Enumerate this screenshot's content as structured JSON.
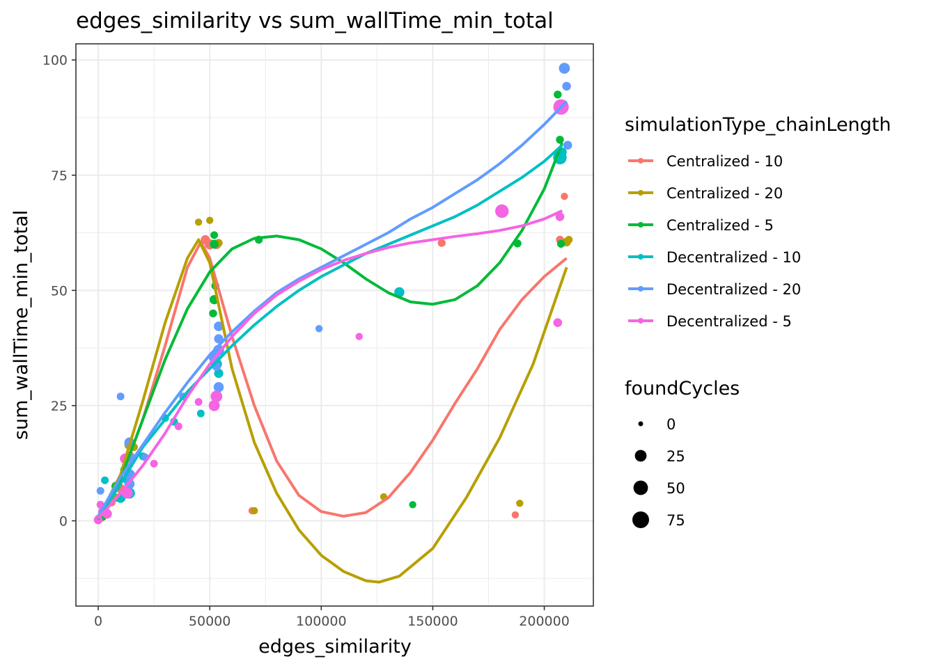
{
  "chart_data": {
    "type": "scatter",
    "title": "edges_similarity  vs  sum_wallTime_min_total",
    "xlabel": "edges_similarity",
    "ylabel": "sum_wallTime_min_total",
    "xlim": [
      -10000,
      222000
    ],
    "ylim": [
      -18.5,
      103.5
    ],
    "x_ticks": [
      0,
      50000,
      100000,
      150000,
      200000
    ],
    "x_tick_labels": [
      "0",
      "50000",
      "100000",
      "150000",
      "200000"
    ],
    "y_ticks": [
      0,
      25,
      50,
      75,
      100
    ],
    "y_tick_labels": [
      "0",
      "25",
      "50",
      "75",
      "100"
    ],
    "grid": true,
    "legend_placement": "right",
    "color_legend": {
      "title": "simulationType_chainLength",
      "items": [
        {
          "name": "Centralized - 10",
          "color": "#F8766D"
        },
        {
          "name": "Centralized - 20",
          "color": "#B79F00"
        },
        {
          "name": "Centralized - 5",
          "color": "#00BA38"
        },
        {
          "name": "Decentralized - 10",
          "color": "#00BFC4"
        },
        {
          "name": "Decentralized - 20",
          "color": "#619CFF"
        },
        {
          "name": "Decentralized - 5",
          "color": "#F564E3"
        }
      ]
    },
    "size_legend": {
      "title": "foundCycles",
      "items": [
        {
          "label": "0",
          "value": 0
        },
        {
          "label": "25",
          "value": 25
        },
        {
          "label": "50",
          "value": 50
        },
        {
          "label": "75",
          "value": 75
        }
      ]
    },
    "series": [
      {
        "name": "Centralized - 10",
        "color": "#F8766D",
        "points": [
          [
            0,
            0.3,
            3
          ],
          [
            1500,
            0.8,
            8
          ],
          [
            3000,
            2,
            12
          ],
          [
            6000,
            4,
            5
          ],
          [
            10000,
            7,
            10
          ],
          [
            14000,
            14,
            15
          ],
          [
            48000,
            61,
            10
          ],
          [
            50000,
            60,
            15
          ],
          [
            53000,
            60,
            12
          ],
          [
            69000,
            2.2,
            3
          ],
          [
            154000,
            60.3,
            5
          ],
          [
            187000,
            1.3,
            3
          ],
          [
            207000,
            61,
            5
          ],
          [
            209000,
            70.4,
            3
          ]
        ],
        "trend": [
          [
            0,
            0.3
          ],
          [
            10000,
            9
          ],
          [
            20000,
            22
          ],
          [
            30000,
            38
          ],
          [
            40000,
            55
          ],
          [
            46000,
            60.5
          ],
          [
            50000,
            57
          ],
          [
            60000,
            40
          ],
          [
            70000,
            25
          ],
          [
            80000,
            13
          ],
          [
            90000,
            5.5
          ],
          [
            100000,
            2
          ],
          [
            110000,
            1
          ],
          [
            120000,
            1.8
          ],
          [
            130000,
            5
          ],
          [
            140000,
            10.5
          ],
          [
            150000,
            17.5
          ],
          [
            160000,
            25.5
          ],
          [
            170000,
            33
          ],
          [
            180000,
            41.5
          ],
          [
            190000,
            48
          ],
          [
            200000,
            53
          ],
          [
            210000,
            57
          ]
        ]
      },
      {
        "name": "Centralized - 20",
        "color": "#B79F00",
        "points": [
          [
            0,
            0.5,
            3
          ],
          [
            3000,
            2,
            8
          ],
          [
            8000,
            5,
            6
          ],
          [
            14000,
            16.5,
            15
          ],
          [
            16000,
            16,
            5
          ],
          [
            45000,
            64.8,
            3
          ],
          [
            50000,
            65.2,
            3
          ],
          [
            54000,
            60.3,
            5
          ],
          [
            70000,
            2.2,
            3
          ],
          [
            128000,
            5.2,
            3
          ],
          [
            189000,
            3.8,
            3
          ],
          [
            210000,
            60.5,
            8
          ],
          [
            211000,
            61,
            4
          ]
        ],
        "trend": [
          [
            0,
            0.5
          ],
          [
            10000,
            10
          ],
          [
            20000,
            26
          ],
          [
            30000,
            43
          ],
          [
            40000,
            57
          ],
          [
            45000,
            61
          ],
          [
            50000,
            56
          ],
          [
            60000,
            33
          ],
          [
            70000,
            17
          ],
          [
            80000,
            6
          ],
          [
            90000,
            -2
          ],
          [
            100000,
            -7.5
          ],
          [
            110000,
            -11
          ],
          [
            120000,
            -13
          ],
          [
            126000,
            -13.3
          ],
          [
            135000,
            -12
          ],
          [
            150000,
            -6
          ],
          [
            165000,
            5
          ],
          [
            180000,
            18
          ],
          [
            195000,
            34
          ],
          [
            210000,
            55
          ]
        ]
      },
      {
        "name": "Centralized - 5",
        "color": "#00BA38",
        "points": [
          [
            0,
            0.3,
            3
          ],
          [
            2000,
            1,
            8
          ],
          [
            8000,
            7.5,
            10
          ],
          [
            12000,
            11,
            12
          ],
          [
            52000,
            62,
            4
          ],
          [
            52000,
            60,
            8
          ],
          [
            52500,
            51,
            5
          ],
          [
            52000,
            48,
            10
          ],
          [
            51500,
            45,
            5
          ],
          [
            72000,
            61,
            5
          ],
          [
            141000,
            3.5,
            3
          ],
          [
            188000,
            60.2,
            5
          ],
          [
            206000,
            92.5,
            5
          ],
          [
            207000,
            82.7,
            5
          ],
          [
            207500,
            60.1,
            5
          ]
        ],
        "trend": [
          [
            0,
            0.3
          ],
          [
            10000,
            9
          ],
          [
            20000,
            22
          ],
          [
            30000,
            35
          ],
          [
            40000,
            46
          ],
          [
            50000,
            54
          ],
          [
            60000,
            59
          ],
          [
            70000,
            61.3
          ],
          [
            80000,
            61.8
          ],
          [
            90000,
            61
          ],
          [
            100000,
            59
          ],
          [
            110000,
            56
          ],
          [
            120000,
            52.5
          ],
          [
            130000,
            49.5
          ],
          [
            140000,
            47.5
          ],
          [
            150000,
            47
          ],
          [
            160000,
            48
          ],
          [
            170000,
            51
          ],
          [
            180000,
            56
          ],
          [
            190000,
            63
          ],
          [
            200000,
            72
          ],
          [
            208000,
            82
          ]
        ]
      },
      {
        "name": "Decentralized - 10",
        "color": "#00BFC4",
        "points": [
          [
            0,
            0.2,
            3
          ],
          [
            3000,
            8.8,
            4
          ],
          [
            10000,
            5,
            15
          ],
          [
            13000,
            9,
            12
          ],
          [
            14000,
            6,
            20
          ],
          [
            20000,
            14,
            4
          ],
          [
            30000,
            22.3,
            4
          ],
          [
            34000,
            21.5,
            5
          ],
          [
            46000,
            23.3,
            4
          ],
          [
            53000,
            34,
            20
          ],
          [
            54000,
            32,
            10
          ],
          [
            135000,
            49.6,
            15
          ],
          [
            207000,
            78.8,
            40
          ],
          [
            208000,
            80,
            10
          ]
        ],
        "trend": [
          [
            0,
            0.5
          ],
          [
            10000,
            8
          ],
          [
            20000,
            16
          ],
          [
            30000,
            22
          ],
          [
            40000,
            28
          ],
          [
            50000,
            33
          ],
          [
            60000,
            38
          ],
          [
            70000,
            42.5
          ],
          [
            80000,
            46.5
          ],
          [
            90000,
            50
          ],
          [
            100000,
            53
          ],
          [
            110000,
            55.5
          ],
          [
            120000,
            58
          ],
          [
            130000,
            60
          ],
          [
            140000,
            62
          ],
          [
            150000,
            64
          ],
          [
            160000,
            66
          ],
          [
            170000,
            68.5
          ],
          [
            180000,
            71.5
          ],
          [
            190000,
            74.5
          ],
          [
            200000,
            78
          ],
          [
            208000,
            81.5
          ]
        ]
      },
      {
        "name": "Decentralized - 20",
        "color": "#619CFF",
        "points": [
          [
            0,
            0.3,
            3
          ],
          [
            1000,
            6.5,
            4
          ],
          [
            10000,
            27,
            4
          ],
          [
            14000,
            17,
            15
          ],
          [
            15000,
            13.5,
            10
          ],
          [
            14000,
            10,
            20
          ],
          [
            14000,
            8,
            15
          ],
          [
            21000,
            13.8,
            4
          ],
          [
            38000,
            27,
            4
          ],
          [
            52000,
            35.5,
            20
          ],
          [
            53000,
            33.5,
            8
          ],
          [
            54000,
            42.2,
            12
          ],
          [
            54000,
            39.5,
            10
          ],
          [
            54000,
            37,
            20
          ],
          [
            54000,
            29,
            15
          ],
          [
            99000,
            41.7,
            3
          ],
          [
            209000,
            98.2,
            20
          ],
          [
            210000,
            94.3,
            8
          ],
          [
            210500,
            81.5,
            8
          ]
        ],
        "trend": [
          [
            0,
            1
          ],
          [
            10000,
            9.5
          ],
          [
            20000,
            16.5
          ],
          [
            30000,
            23.5
          ],
          [
            40000,
            30
          ],
          [
            50000,
            36
          ],
          [
            60000,
            41
          ],
          [
            70000,
            45.5
          ],
          [
            80000,
            49.5
          ],
          [
            90000,
            52.5
          ],
          [
            100000,
            55
          ],
          [
            110000,
            57.5
          ],
          [
            120000,
            60
          ],
          [
            130000,
            62.5
          ],
          [
            140000,
            65.5
          ],
          [
            150000,
            68
          ],
          [
            160000,
            71
          ],
          [
            170000,
            74
          ],
          [
            180000,
            77.5
          ],
          [
            190000,
            81.5
          ],
          [
            200000,
            86
          ],
          [
            210000,
            91
          ]
        ]
      },
      {
        "name": "Decentralized - 5",
        "color": "#F564E3",
        "points": [
          [
            0,
            0.2,
            8
          ],
          [
            1000,
            3.5,
            4
          ],
          [
            2000,
            2,
            8
          ],
          [
            4000,
            1.5,
            12
          ],
          [
            12000,
            13.5,
            15
          ],
          [
            13000,
            6,
            20
          ],
          [
            25000,
            12.4,
            4
          ],
          [
            36000,
            20.5,
            4
          ],
          [
            45000,
            25.8,
            4
          ],
          [
            52000,
            25,
            20
          ],
          [
            53000,
            27,
            25
          ],
          [
            52000,
            24.8,
            8
          ],
          [
            117000,
            40,
            3
          ],
          [
            181000,
            67.2,
            40
          ],
          [
            206000,
            43,
            8
          ],
          [
            207000,
            66,
            8
          ],
          [
            207500,
            89.8,
            60
          ]
        ],
        "trend": [
          [
            0,
            0.5
          ],
          [
            10000,
            6
          ],
          [
            20000,
            12
          ],
          [
            30000,
            19
          ],
          [
            40000,
            27
          ],
          [
            50000,
            34
          ],
          [
            60000,
            40
          ],
          [
            70000,
            45
          ],
          [
            80000,
            49
          ],
          [
            90000,
            52
          ],
          [
            100000,
            54.5
          ],
          [
            110000,
            56.5
          ],
          [
            120000,
            58
          ],
          [
            130000,
            59.3
          ],
          [
            140000,
            60.3
          ],
          [
            150000,
            61
          ],
          [
            160000,
            61.7
          ],
          [
            170000,
            62.3
          ],
          [
            180000,
            63
          ],
          [
            190000,
            64
          ],
          [
            200000,
            65.5
          ],
          [
            208000,
            67.3
          ]
        ]
      }
    ]
  }
}
